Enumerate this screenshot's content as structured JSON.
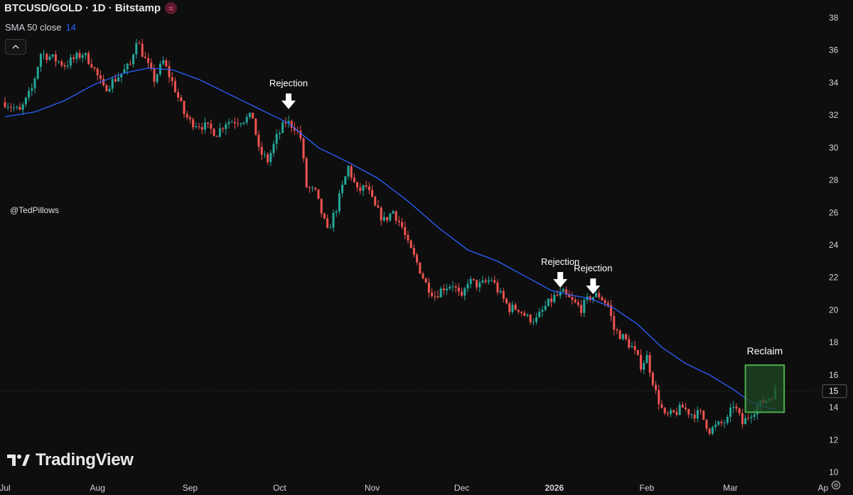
{
  "header": {
    "title": "BTCUSD/GOLD · 1D · Bitstamp",
    "indicator_label": "SMA 50 close",
    "indicator_value": "14",
    "handle": "@TedPillows",
    "brand": "TradingView"
  },
  "chart_data": {
    "type": "candlestick",
    "title": "BTCUSD/GOLD · 1D · Bitstamp",
    "ylim": [
      10,
      38
    ],
    "y_ticks": [
      10,
      12,
      14,
      16,
      18,
      20,
      22,
      24,
      26,
      28,
      30,
      32,
      34,
      36,
      38
    ],
    "x_ticks": [
      {
        "label": "Jul",
        "day": 0
      },
      {
        "label": "Aug",
        "day": 31
      },
      {
        "label": "Sep",
        "day": 62
      },
      {
        "label": "Oct",
        "day": 92
      },
      {
        "label": "Nov",
        "day": 123
      },
      {
        "label": "Dec",
        "day": 153
      },
      {
        "label": "2026",
        "day": 184,
        "bold": true
      },
      {
        "label": "Feb",
        "day": 215
      },
      {
        "label": "Mar",
        "day": 243
      },
      {
        "label": "Ap",
        "day": 274
      }
    ],
    "current_price_label": "15",
    "current_price": 15.0,
    "close_series": [
      {
        "day": 0,
        "close": 32.8
      },
      {
        "day": 5,
        "close": 32.2
      },
      {
        "day": 9,
        "close": 33.6
      },
      {
        "day": 12,
        "close": 35.8
      },
      {
        "day": 15,
        "close": 35.6
      },
      {
        "day": 20,
        "close": 35.1
      },
      {
        "day": 26,
        "close": 35.8
      },
      {
        "day": 29,
        "close": 35.2
      },
      {
        "day": 33,
        "close": 33.6
      },
      {
        "day": 38,
        "close": 34.4
      },
      {
        "day": 42,
        "close": 35.1
      },
      {
        "day": 44,
        "close": 36.7
      },
      {
        "day": 47,
        "close": 35.4
      },
      {
        "day": 50,
        "close": 34.2
      },
      {
        "day": 53,
        "close": 35.3
      },
      {
        "day": 57,
        "close": 33.6
      },
      {
        "day": 60,
        "close": 32.1
      },
      {
        "day": 62,
        "close": 31.6
      },
      {
        "day": 67,
        "close": 31.3
      },
      {
        "day": 71,
        "close": 30.9
      },
      {
        "day": 74,
        "close": 31.6
      },
      {
        "day": 79,
        "close": 31.7
      },
      {
        "day": 83,
        "close": 31.9
      },
      {
        "day": 85,
        "close": 29.8
      },
      {
        "day": 88,
        "close": 29.2
      },
      {
        "day": 91,
        "close": 30.6
      },
      {
        "day": 94,
        "close": 31.6
      },
      {
        "day": 97,
        "close": 31.3
      },
      {
        "day": 99,
        "close": 30.6
      },
      {
        "day": 101,
        "close": 27.6
      },
      {
        "day": 104,
        "close": 27.2
      },
      {
        "day": 108,
        "close": 24.8
      },
      {
        "day": 111,
        "close": 26.3
      },
      {
        "day": 115,
        "close": 28.8
      },
      {
        "day": 118,
        "close": 27.3
      },
      {
        "day": 121,
        "close": 27.6
      },
      {
        "day": 124,
        "close": 26.3
      },
      {
        "day": 127,
        "close": 25.5
      },
      {
        "day": 130,
        "close": 26.1
      },
      {
        "day": 133,
        "close": 25.1
      },
      {
        "day": 135,
        "close": 24.0
      },
      {
        "day": 138,
        "close": 22.9
      },
      {
        "day": 141,
        "close": 21.6
      },
      {
        "day": 144,
        "close": 20.9
      },
      {
        "day": 147,
        "close": 21.4
      },
      {
        "day": 150,
        "close": 21.6
      },
      {
        "day": 153,
        "close": 20.6
      },
      {
        "day": 155,
        "close": 21.8
      },
      {
        "day": 159,
        "close": 21.5
      },
      {
        "day": 163,
        "close": 21.9
      },
      {
        "day": 166,
        "close": 20.9
      },
      {
        "day": 169,
        "close": 20.1
      },
      {
        "day": 172,
        "close": 20.1
      },
      {
        "day": 175,
        "close": 19.5
      },
      {
        "day": 178,
        "close": 19.4
      },
      {
        "day": 181,
        "close": 20.2
      },
      {
        "day": 184,
        "close": 20.8
      },
      {
        "day": 187,
        "close": 21.0
      },
      {
        "day": 190,
        "close": 20.5
      },
      {
        "day": 193,
        "close": 20.1
      },
      {
        "day": 196,
        "close": 20.8
      },
      {
        "day": 199,
        "close": 20.9
      },
      {
        "day": 202,
        "close": 20.3
      },
      {
        "day": 204,
        "close": 18.8
      },
      {
        "day": 207,
        "close": 18.3
      },
      {
        "day": 210,
        "close": 17.7
      },
      {
        "day": 213,
        "close": 16.6
      },
      {
        "day": 215,
        "close": 17.1
      },
      {
        "day": 218,
        "close": 14.9
      },
      {
        "day": 221,
        "close": 13.4
      },
      {
        "day": 224,
        "close": 13.6
      },
      {
        "day": 227,
        "close": 14.0
      },
      {
        "day": 230,
        "close": 13.6
      },
      {
        "day": 233,
        "close": 13.6
      },
      {
        "day": 236,
        "close": 12.6
      },
      {
        "day": 239,
        "close": 12.9
      },
      {
        "day": 242,
        "close": 13.2
      },
      {
        "day": 244,
        "close": 14.2
      },
      {
        "day": 247,
        "close": 13.0
      },
      {
        "day": 250,
        "close": 13.7
      },
      {
        "day": 253,
        "close": 14.2
      },
      {
        "day": 256,
        "close": 14.6
      },
      {
        "day": 258,
        "close": 15.0
      }
    ],
    "sma_50": [
      {
        "day": 0,
        "value": 31.9
      },
      {
        "day": 10,
        "value": 32.2
      },
      {
        "day": 20,
        "value": 32.9
      },
      {
        "day": 30,
        "value": 33.9
      },
      {
        "day": 40,
        "value": 34.6
      },
      {
        "day": 48,
        "value": 34.9
      },
      {
        "day": 56,
        "value": 34.8
      },
      {
        "day": 65,
        "value": 34.2
      },
      {
        "day": 75,
        "value": 33.3
      },
      {
        "day": 85,
        "value": 32.4
      },
      {
        "day": 95,
        "value": 31.5
      },
      {
        "day": 105,
        "value": 30.0
      },
      {
        "day": 115,
        "value": 29.1
      },
      {
        "day": 125,
        "value": 28.1
      },
      {
        "day": 135,
        "value": 26.7
      },
      {
        "day": 145,
        "value": 25.1
      },
      {
        "day": 155,
        "value": 23.7
      },
      {
        "day": 165,
        "value": 23.0
      },
      {
        "day": 175,
        "value": 22.0
      },
      {
        "day": 183,
        "value": 21.2
      },
      {
        "day": 190,
        "value": 20.9
      },
      {
        "day": 196,
        "value": 20.7
      },
      {
        "day": 204,
        "value": 20.1
      },
      {
        "day": 212,
        "value": 19.1
      },
      {
        "day": 220,
        "value": 17.7
      },
      {
        "day": 228,
        "value": 16.7
      },
      {
        "day": 236,
        "value": 16.0
      },
      {
        "day": 244,
        "value": 15.1
      },
      {
        "day": 250,
        "value": 14.3
      },
      {
        "day": 255,
        "value": 14.0
      },
      {
        "day": 258,
        "value": 13.9
      }
    ],
    "annotations": [
      {
        "text": "Rejection",
        "day": 95,
        "value": 32.2,
        "type": "arrow-down"
      },
      {
        "text": "Rejection",
        "day": 186,
        "value": 21.2,
        "type": "arrow-down"
      },
      {
        "text": "Rejection",
        "day": 197,
        "value": 20.8,
        "type": "arrow-down"
      },
      {
        "text": "Reclaim",
        "type": "box",
        "day_start": 248,
        "day_end": 261,
        "value_low": 13.7,
        "value_high": 16.6
      }
    ],
    "colors": {
      "background": "#0e0e0e",
      "up": "#26a69a",
      "down": "#ef5350",
      "sma": "#2962ff",
      "axis_text": "#d1d4dc",
      "box_fill": "#1f4a24",
      "box_stroke": "#4caf50"
    }
  }
}
